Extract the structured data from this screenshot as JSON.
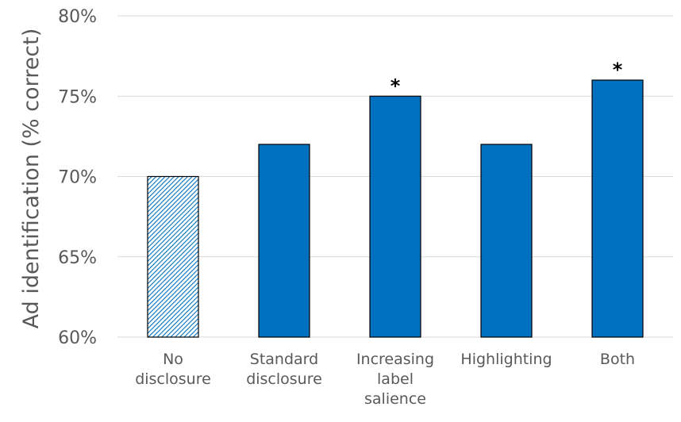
{
  "chart_data": {
    "type": "bar",
    "categories": [
      [
        "No",
        "disclosure"
      ],
      [
        "Standard",
        "disclosure"
      ],
      [
        "Increasing",
        "label",
        "salience"
      ],
      [
        "Highlighting"
      ],
      [
        "Both"
      ]
    ],
    "values": [
      70,
      72,
      75,
      72,
      76
    ],
    "value_unit": "%",
    "ylabel": "Ad identification (% correct)",
    "ylim": [
      60,
      80
    ],
    "yticks": [
      60,
      65,
      70,
      75,
      80
    ],
    "ytick_labels": [
      "60%",
      "65%",
      "70%",
      "75%",
      "80%"
    ],
    "significance_marks": [
      "",
      "",
      "*",
      "",
      "*"
    ],
    "bar_color": "#0070C0",
    "baseline_bar_pattern": "diagonal-hatch",
    "grid": true,
    "legend": "none"
  }
}
